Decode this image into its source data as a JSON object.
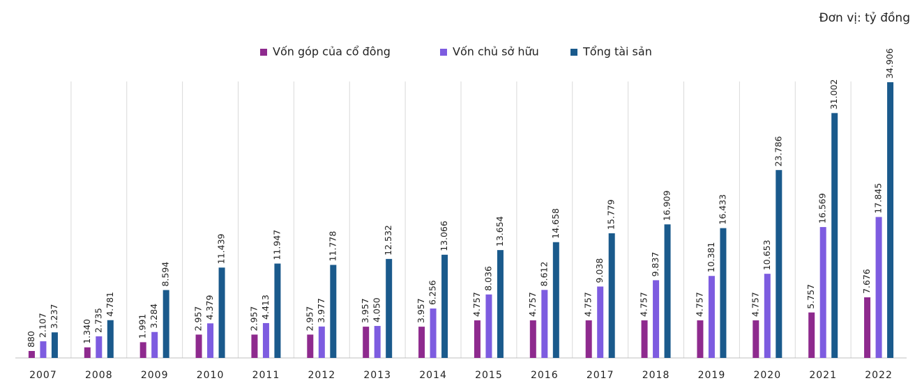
{
  "chart_data": {
    "type": "bar",
    "unit": "Đơn vị: tỷ đồng",
    "categories": [
      "2007",
      "2008",
      "2009",
      "2010",
      "2011",
      "2012",
      "2013",
      "2014",
      "2015",
      "2016",
      "2017",
      "2018",
      "2019",
      "2020",
      "2021",
      "2022"
    ],
    "series": [
      {
        "name": "Vốn góp của cổ đông",
        "color": "#8e2a8e",
        "values": [
          880,
          1340,
          1991,
          2957,
          2957,
          2957,
          3957,
          3957,
          4757,
          4757,
          4757,
          4757,
          4757,
          4757,
          5757,
          7676
        ],
        "value_labels": [
          "880",
          "1.340",
          "1.991",
          "2.957",
          "2.957",
          "2.957",
          "3.957",
          "3.957",
          "4.757",
          "4.757",
          "4.757",
          "4.757",
          "4.757",
          "4.757",
          "5.757",
          "7.676"
        ]
      },
      {
        "name": "Vốn chủ sở hữu",
        "color": "#7d5ce0",
        "values": [
          2107,
          2735,
          3284,
          4379,
          4413,
          3977,
          4050,
          6256,
          8036,
          8612,
          9038,
          9837,
          10381,
          10653,
          16569,
          17845
        ],
        "value_labels": [
          "2.107",
          "2.735",
          "3.284",
          "4.379",
          "4.413",
          "3.977",
          "4.050",
          "6.256",
          "8.036",
          "8.612",
          "9.038",
          "9.837",
          "10.381",
          "10.653",
          "16.569",
          "17.845"
        ]
      },
      {
        "name": "Tổng tài sản",
        "color": "#1a5a8c",
        "values": [
          3237,
          4781,
          8594,
          11439,
          11947,
          11778,
          12532,
          13066,
          13654,
          14658,
          15779,
          16909,
          16433,
          23786,
          31002,
          34906
        ],
        "value_labels": [
          "3.237",
          "4.781",
          "8.594",
          "11.439",
          "11.947",
          "11.778",
          "12.532",
          "13.066",
          "13.654",
          "14.658",
          "15.779",
          "16.909",
          "16.433",
          "23.786",
          "31.002",
          "34.906"
        ]
      }
    ],
    "ylim": [
      0,
      35000
    ]
  }
}
